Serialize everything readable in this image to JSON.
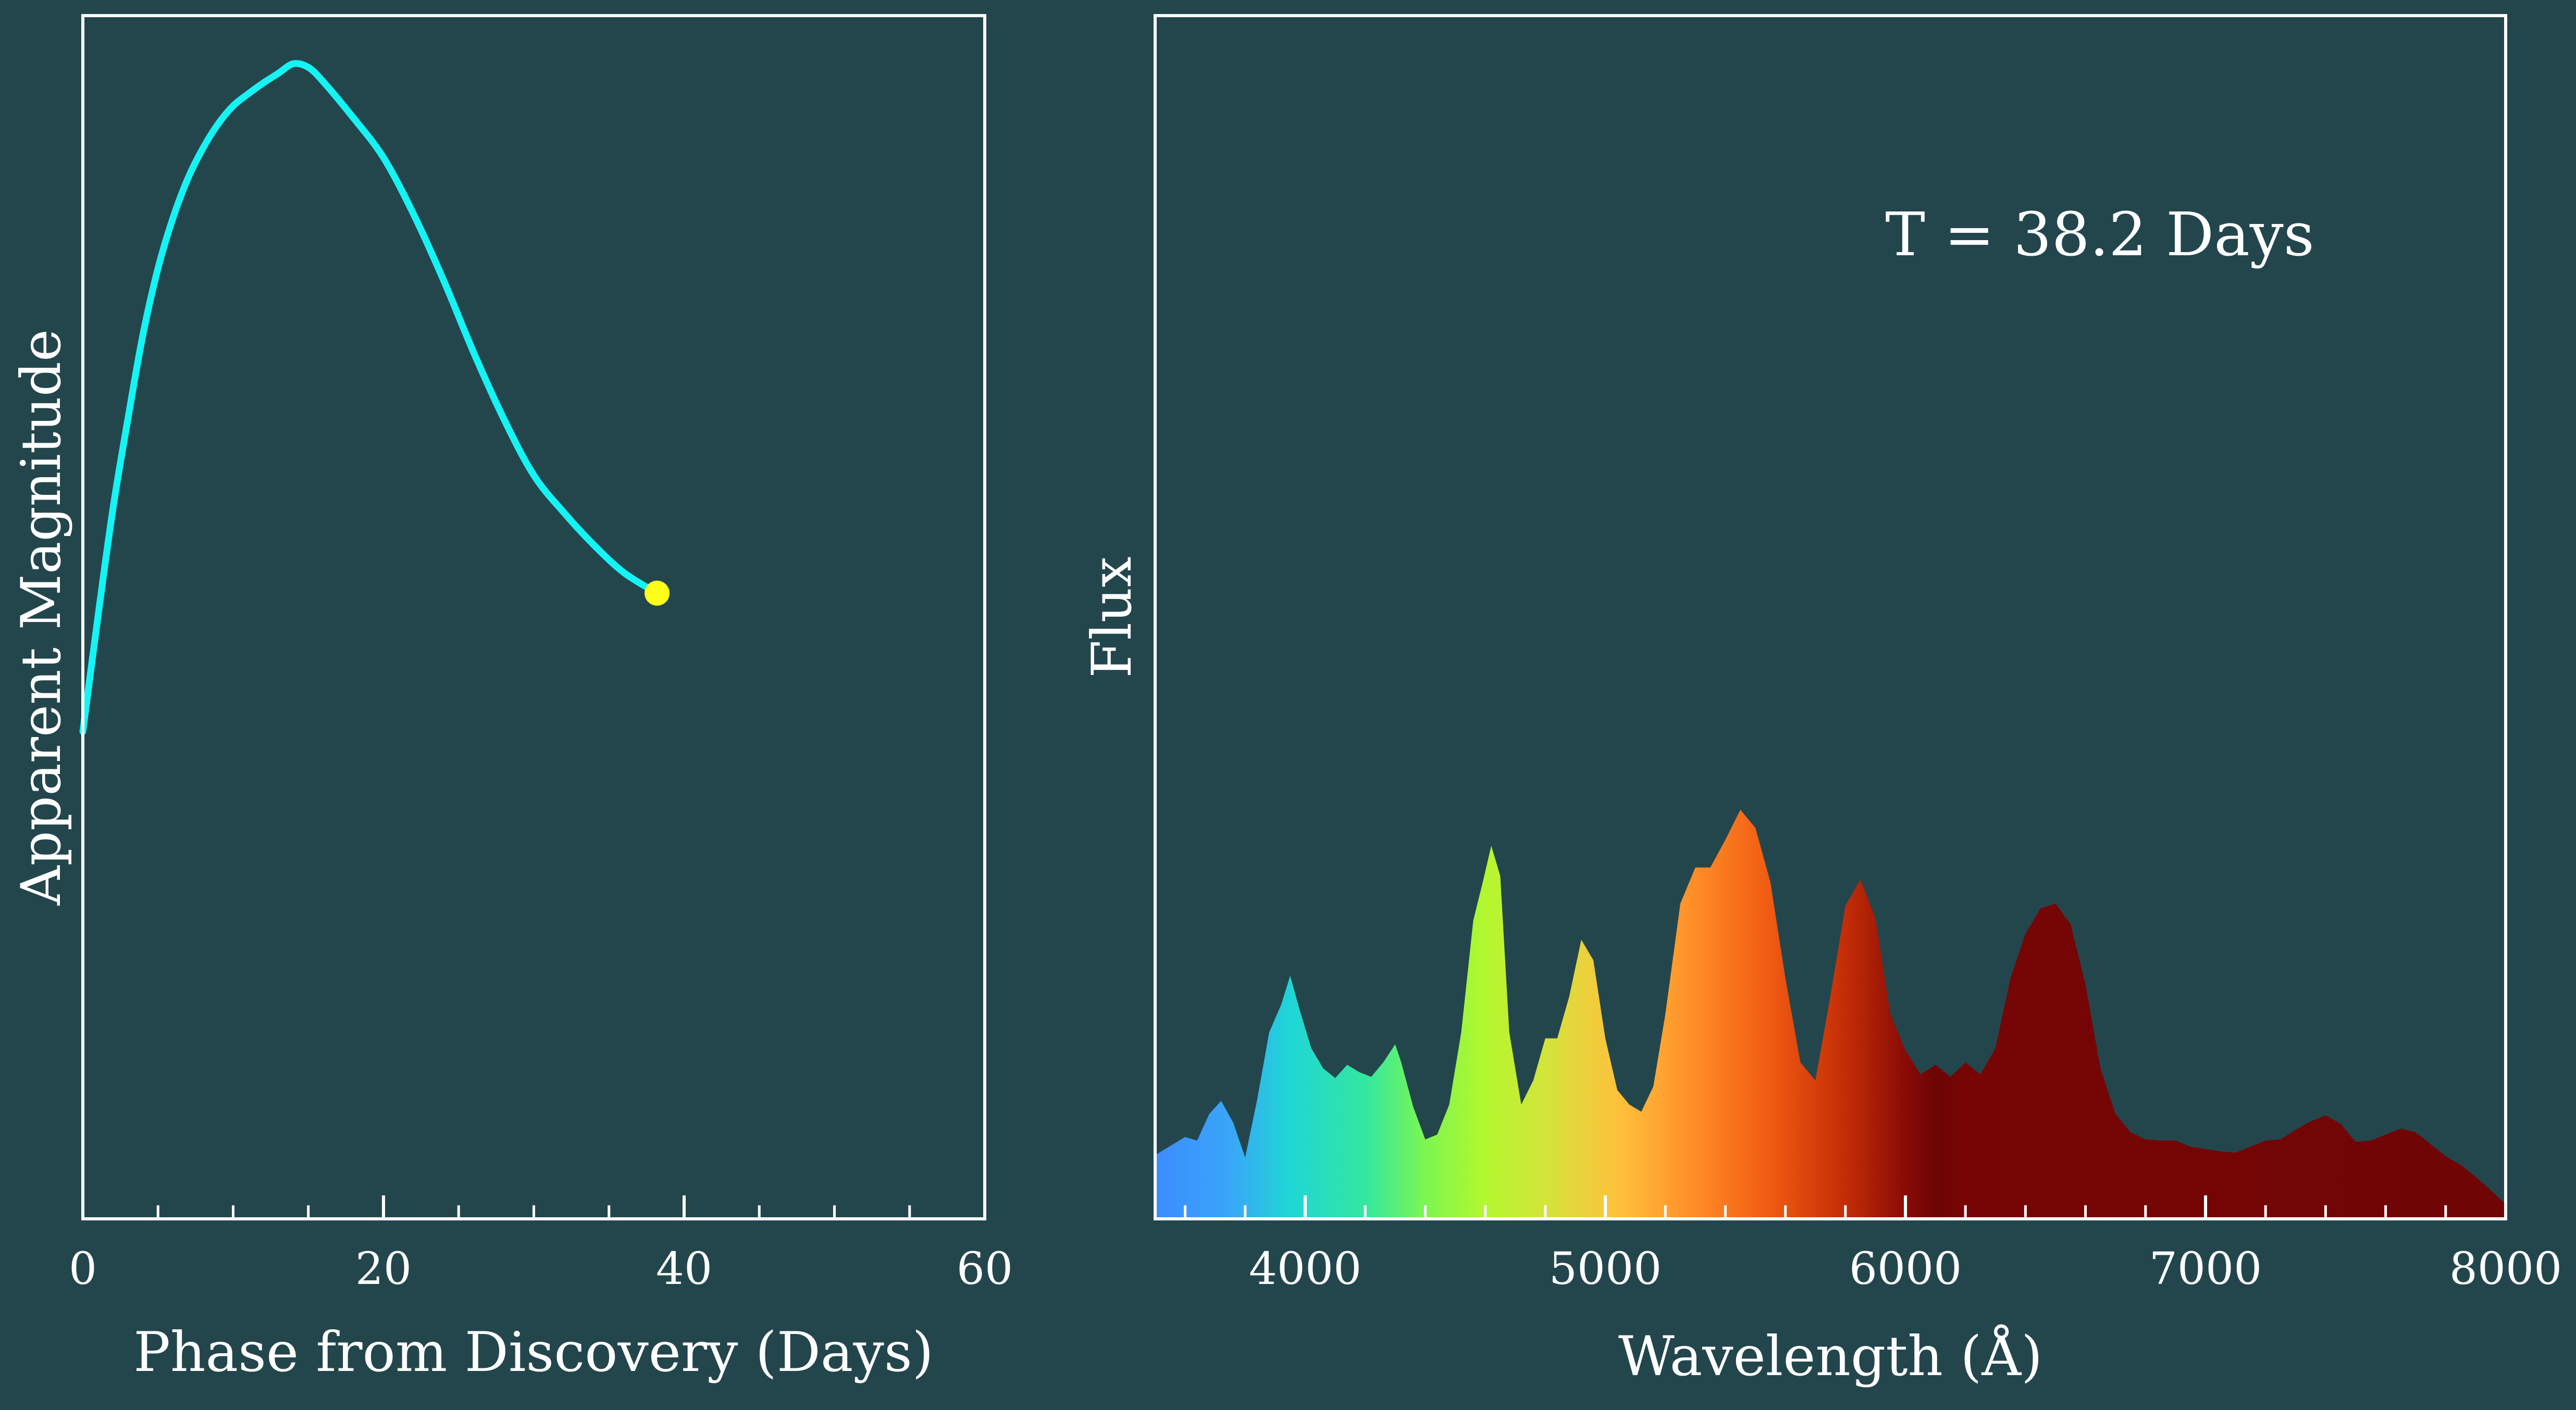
{
  "theme": {
    "background": "#23464d",
    "axis_color": "#ffffff",
    "lightcurve_color": "#15f4f4",
    "marker_color": "#ffff1a"
  },
  "chart_data": [
    {
      "type": "line",
      "title": "",
      "xlabel": "Phase from Discovery (Days)",
      "ylabel": "Apparent Magnitude",
      "xlim": [
        0,
        60
      ],
      "ylim": [
        0,
        1
      ],
      "y_tick_labels_shown": false,
      "x_ticks": [
        0,
        20,
        40,
        60
      ],
      "x_minor_ticks": [
        5,
        10,
        15,
        25,
        30,
        35,
        45,
        50,
        55
      ],
      "grid": false,
      "series": [
        {
          "x": [
            0,
            1,
            2,
            3,
            4,
            5,
            6,
            7,
            8,
            9,
            10,
            11,
            12,
            13,
            14,
            15,
            16,
            18,
            20,
            22,
            24,
            26,
            28,
            30,
            32,
            34,
            36,
            38.2
          ],
          "y": [
            0.405,
            0.5,
            0.59,
            0.665,
            0.735,
            0.79,
            0.832,
            0.865,
            0.89,
            0.91,
            0.925,
            0.935,
            0.944,
            0.952,
            0.96,
            0.957,
            0.945,
            0.915,
            0.882,
            0.835,
            0.78,
            0.72,
            0.665,
            0.618,
            0.587,
            0.56,
            0.537,
            0.52
          ]
        }
      ],
      "current_point": {
        "x": 38.2,
        "y": 0.52
      }
    },
    {
      "type": "area",
      "title": "",
      "xlabel": "Wavelength (Å)",
      "ylabel": "Flux",
      "annotation": "T = 38.2 Days",
      "xlim": [
        3500,
        8000
      ],
      "ylim": [
        0,
        1
      ],
      "y_tick_labels_shown": false,
      "x_ticks": [
        4000,
        5000,
        6000,
        7000,
        8000
      ],
      "x_minor_ticks": [
        3600,
        3800,
        4200,
        4400,
        4600,
        4800,
        5200,
        5400,
        5600,
        5800,
        6200,
        6400,
        6600,
        6800,
        7200,
        7400,
        7600,
        7800
      ],
      "grid": false,
      "fill": "wavelength-colormap",
      "colormap_stops": [
        {
          "wavelength": 3500,
          "color": "#3c8cff"
        },
        {
          "wavelength": 3750,
          "color": "#3aa6f8"
        },
        {
          "wavelength": 3950,
          "color": "#1fd6d6"
        },
        {
          "wavelength": 4200,
          "color": "#32e8a0"
        },
        {
          "wavelength": 4400,
          "color": "#7cf652"
        },
        {
          "wavelength": 4600,
          "color": "#b3f72e"
        },
        {
          "wavelength": 4800,
          "color": "#d3e43a"
        },
        {
          "wavelength": 5050,
          "color": "#ffc03c"
        },
        {
          "wavelength": 5300,
          "color": "#ff8c26"
        },
        {
          "wavelength": 5550,
          "color": "#f05a12"
        },
        {
          "wavelength": 5800,
          "color": "#c32d06"
        },
        {
          "wavelength": 6000,
          "color": "#8a0a06"
        },
        {
          "wavelength": 6100,
          "color": "#6c0504"
        },
        {
          "wavelength": 6200,
          "color": "#770505"
        },
        {
          "wavelength": 8000,
          "color": "#6f0505"
        }
      ],
      "series": [
        {
          "x": [
            3500,
            3560,
            3600,
            3640,
            3680,
            3720,
            3760,
            3800,
            3840,
            3880,
            3920,
            3950,
            3980,
            4020,
            4060,
            4100,
            4140,
            4180,
            4220,
            4260,
            4300,
            4320,
            4360,
            4400,
            4440,
            4480,
            4520,
            4560,
            4590,
            4620,
            4650,
            4680,
            4720,
            4760,
            4800,
            4840,
            4880,
            4920,
            4960,
            5000,
            5040,
            5080,
            5120,
            5160,
            5200,
            5250,
            5300,
            5350,
            5400,
            5450,
            5500,
            5550,
            5600,
            5650,
            5700,
            5750,
            5800,
            5850,
            5900,
            5950,
            6000,
            6050,
            6100,
            6150,
            6200,
            6250,
            6300,
            6350,
            6400,
            6450,
            6500,
            6550,
            6600,
            6650,
            6700,
            6750,
            6800,
            6850,
            6900,
            6950,
            7000,
            7050,
            7100,
            7150,
            7200,
            7250,
            7300,
            7350,
            7400,
            7450,
            7500,
            7550,
            7600,
            7650,
            7700,
            7750,
            7800,
            7850,
            7900,
            7950,
            8000
          ],
          "y": [
            0.053,
            0.062,
            0.068,
            0.065,
            0.087,
            0.098,
            0.08,
            0.051,
            0.099,
            0.155,
            0.178,
            0.202,
            0.175,
            0.142,
            0.125,
            0.117,
            0.128,
            0.122,
            0.118,
            0.13,
            0.145,
            0.13,
            0.093,
            0.066,
            0.07,
            0.095,
            0.155,
            0.248,
            0.278,
            0.31,
            0.285,
            0.155,
            0.095,
            0.115,
            0.15,
            0.15,
            0.185,
            0.232,
            0.215,
            0.15,
            0.107,
            0.095,
            0.089,
            0.11,
            0.17,
            0.262,
            0.292,
            0.292,
            0.315,
            0.34,
            0.325,
            0.28,
            0.2,
            0.13,
            0.115,
            0.185,
            0.26,
            0.282,
            0.25,
            0.17,
            0.14,
            0.12,
            0.128,
            0.118,
            0.13,
            0.12,
            0.142,
            0.2,
            0.237,
            0.258,
            0.262,
            0.245,
            0.195,
            0.125,
            0.087,
            0.072,
            0.066,
            0.065,
            0.065,
            0.06,
            0.058,
            0.056,
            0.055,
            0.06,
            0.065,
            0.066,
            0.074,
            0.081,
            0.086,
            0.079,
            0.064,
            0.065,
            0.07,
            0.075,
            0.072,
            0.062,
            0.052,
            0.045,
            0.035,
            0.024,
            0.012
          ]
        }
      ]
    }
  ]
}
